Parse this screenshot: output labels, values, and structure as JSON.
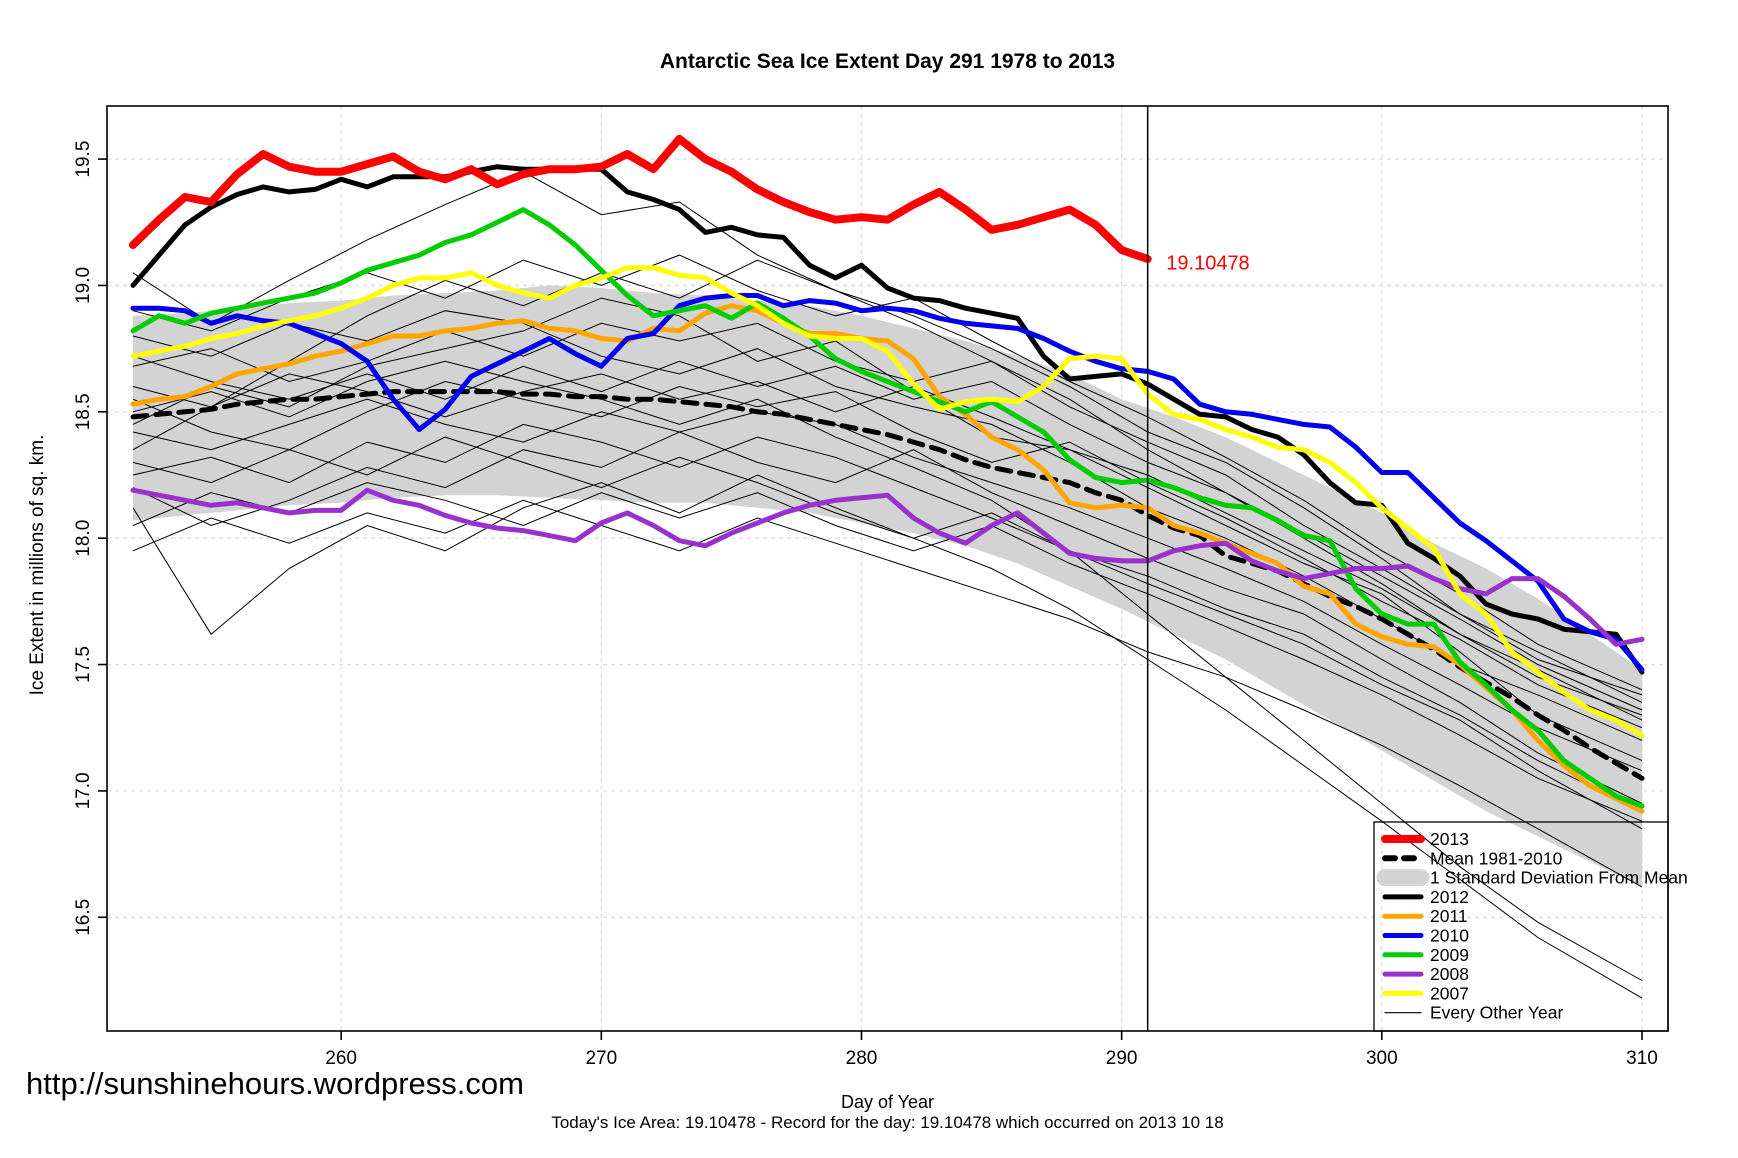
{
  "footer": {
    "url": "http://sunshinehours.wordpress.com",
    "caption": "Today's Ice Area: 19.10478  - Record for the day: 19.10478 which occurred on 2013 10 18"
  },
  "chart_data": {
    "type": "line",
    "title": "Antarctic Sea Ice Extent Day 291 1978 to 2013",
    "xlabel": "Day of Year",
    "ylabel": "Ice Extent in millions of sq. km.",
    "xlim": [
      251,
      311
    ],
    "ylim": [
      16.05,
      19.71
    ],
    "x_ticks": [
      "260",
      "270",
      "280",
      "290",
      "300",
      "310"
    ],
    "y_ticks": [
      "16.5",
      "17.0",
      "17.5",
      "18.0",
      "18.5",
      "19.0",
      "19.5"
    ],
    "grid": true,
    "grid_color": "#dedede",
    "legend_position": "bottom-right",
    "vline_day": 291,
    "annotation": {
      "text": "19.10478",
      "day": 291.6,
      "value": 19.09,
      "color": "#ff0000"
    },
    "band": {
      "label": "1 Standard Deviation From Mean",
      "color": "#d3d3d3",
      "days": [
        252,
        254,
        256,
        258,
        260,
        262,
        264,
        266,
        268,
        270,
        272,
        274,
        276,
        278,
        280,
        282,
        284,
        286,
        288,
        290,
        292,
        294,
        296,
        298,
        300,
        302,
        304,
        306,
        308,
        310
      ],
      "upper": [
        18.88,
        18.89,
        18.91,
        18.93,
        18.94,
        18.96,
        18.97,
        18.98,
        19.0,
        18.99,
        18.97,
        18.96,
        18.94,
        18.92,
        18.88,
        18.83,
        18.78,
        18.72,
        18.65,
        18.55,
        18.48,
        18.4,
        18.3,
        18.2,
        18.1,
        17.98,
        17.88,
        17.76,
        17.62,
        17.48
      ],
      "lower": [
        18.07,
        18.09,
        18.11,
        18.13,
        18.14,
        18.16,
        18.17,
        18.17,
        18.16,
        18.15,
        18.14,
        18.14,
        18.12,
        18.1,
        18.06,
        18.02,
        17.97,
        17.9,
        17.81,
        17.72,
        17.62,
        17.52,
        17.4,
        17.28,
        17.16,
        17.04,
        16.92,
        16.82,
        16.72,
        16.62
      ]
    },
    "series": [
      {
        "name": "Mean 1981-2010",
        "color": "#000000",
        "width": 5,
        "dash": "14 9",
        "day_start": 252,
        "values": [
          18.48,
          18.49,
          18.5,
          18.51,
          18.53,
          18.54,
          18.55,
          18.55,
          18.56,
          18.57,
          18.58,
          18.58,
          18.58,
          18.58,
          18.58,
          18.57,
          18.57,
          18.56,
          18.56,
          18.55,
          18.55,
          18.54,
          18.53,
          18.52,
          18.5,
          18.49,
          18.47,
          18.45,
          18.43,
          18.41,
          18.38,
          18.35,
          18.31,
          18.28,
          18.26,
          18.24,
          18.22,
          18.18,
          18.15,
          18.09,
          18.04,
          18.01,
          17.93,
          17.9,
          17.87,
          17.82,
          17.77,
          17.73,
          17.68,
          17.62,
          17.56,
          17.49,
          17.43,
          17.37,
          17.3,
          17.24,
          17.17,
          17.11,
          17.05
        ]
      },
      {
        "name": "2012",
        "color": "#000000",
        "width": 5,
        "dash": null,
        "day_start": 252,
        "values": [
          19.0,
          19.12,
          19.24,
          19.31,
          19.36,
          19.39,
          19.37,
          19.38,
          19.42,
          19.39,
          19.43,
          19.43,
          19.43,
          19.45,
          19.47,
          19.46,
          19.46,
          19.46,
          19.46,
          19.37,
          19.34,
          19.3,
          19.21,
          19.23,
          19.2,
          19.19,
          19.08,
          19.03,
          19.08,
          18.99,
          18.95,
          18.94,
          18.91,
          18.89,
          18.87,
          18.72,
          18.63,
          18.64,
          18.65,
          18.61,
          18.55,
          18.49,
          18.48,
          18.43,
          18.4,
          18.33,
          18.22,
          18.14,
          18.13,
          17.98,
          17.92,
          17.85,
          17.74,
          17.7,
          17.68,
          17.64,
          17.63,
          17.62,
          17.47
        ]
      },
      {
        "name": "2011",
        "color": "#ffa500",
        "width": 5,
        "dash": null,
        "day_start": 252,
        "values": [
          18.53,
          18.55,
          18.56,
          18.6,
          18.65,
          18.67,
          18.69,
          18.72,
          18.74,
          18.77,
          18.8,
          18.8,
          18.82,
          18.83,
          18.85,
          18.86,
          18.83,
          18.82,
          18.79,
          18.78,
          18.83,
          18.82,
          18.89,
          18.92,
          18.9,
          18.85,
          18.81,
          18.81,
          18.79,
          18.78,
          18.71,
          18.56,
          18.49,
          18.4,
          18.35,
          18.27,
          18.14,
          18.12,
          18.13,
          18.12,
          18.05,
          18.02,
          17.98,
          17.94,
          17.9,
          17.81,
          17.78,
          17.66,
          17.61,
          17.58,
          17.57,
          17.5,
          17.41,
          17.32,
          17.2,
          17.1,
          17.02,
          16.97,
          16.92
        ]
      },
      {
        "name": "2010",
        "color": "#0000ee",
        "width": 5,
        "dash": null,
        "day_start": 252,
        "values": [
          18.91,
          18.91,
          18.9,
          18.85,
          18.88,
          18.86,
          18.85,
          18.81,
          18.77,
          18.7,
          18.55,
          18.43,
          18.51,
          18.64,
          18.69,
          18.74,
          18.79,
          18.73,
          18.68,
          18.79,
          18.81,
          18.92,
          18.95,
          18.96,
          18.96,
          18.92,
          18.94,
          18.93,
          18.9,
          18.91,
          18.9,
          18.87,
          18.85,
          18.84,
          18.83,
          18.79,
          18.74,
          18.7,
          18.67,
          18.66,
          18.63,
          18.53,
          18.5,
          18.49,
          18.47,
          18.45,
          18.44,
          18.36,
          18.26,
          18.26,
          18.16,
          18.06,
          17.99,
          17.91,
          17.83,
          17.68,
          17.63,
          17.6,
          17.48
        ]
      },
      {
        "name": "2009",
        "color": "#00cc00",
        "width": 5,
        "dash": null,
        "day_start": 252,
        "values": [
          18.82,
          18.88,
          18.85,
          18.89,
          18.91,
          18.93,
          18.95,
          18.97,
          19.01,
          19.06,
          19.09,
          19.12,
          19.17,
          19.2,
          19.25,
          19.3,
          19.24,
          19.16,
          19.06,
          18.96,
          18.88,
          18.9,
          18.92,
          18.87,
          18.93,
          18.87,
          18.8,
          18.71,
          18.66,
          18.62,
          18.58,
          18.54,
          18.5,
          18.54,
          18.48,
          18.42,
          18.31,
          18.24,
          18.22,
          18.23,
          18.2,
          18.16,
          18.13,
          18.12,
          18.07,
          18.01,
          17.99,
          17.8,
          17.7,
          17.66,
          17.66,
          17.51,
          17.42,
          17.32,
          17.24,
          17.12,
          17.05,
          16.98,
          16.94
        ]
      },
      {
        "name": "2008",
        "color": "#9932cc",
        "width": 5,
        "dash": null,
        "day_start": 252,
        "values": [
          18.19,
          18.17,
          18.15,
          18.13,
          18.14,
          18.12,
          18.1,
          18.11,
          18.11,
          18.19,
          18.15,
          18.13,
          18.09,
          18.06,
          18.04,
          18.03,
          18.01,
          17.99,
          18.06,
          18.1,
          18.05,
          17.99,
          17.97,
          18.02,
          18.06,
          18.1,
          18.13,
          18.15,
          18.16,
          18.17,
          18.08,
          18.02,
          17.98,
          18.05,
          18.1,
          18.02,
          17.94,
          17.92,
          17.91,
          17.91,
          17.95,
          17.97,
          17.98,
          17.91,
          17.87,
          17.84,
          17.86,
          17.88,
          17.88,
          17.89,
          17.84,
          17.8,
          17.78,
          17.84,
          17.84,
          17.77,
          17.68,
          17.58,
          17.6
        ]
      },
      {
        "name": "2007",
        "color": "#ffff00",
        "width": 5,
        "dash": null,
        "day_start": 252,
        "values": [
          18.72,
          18.74,
          18.76,
          18.79,
          18.81,
          18.84,
          18.86,
          18.88,
          18.91,
          18.95,
          19.0,
          19.03,
          19.03,
          19.05,
          19.0,
          18.97,
          18.95,
          19.0,
          19.03,
          19.07,
          19.07,
          19.04,
          19.03,
          18.97,
          18.92,
          18.85,
          18.8,
          18.79,
          18.79,
          18.74,
          18.61,
          18.51,
          18.54,
          18.55,
          18.54,
          18.6,
          18.71,
          18.72,
          18.71,
          18.57,
          18.49,
          18.47,
          18.43,
          18.4,
          18.36,
          18.35,
          18.3,
          18.22,
          18.12,
          18.04,
          17.96,
          17.78,
          17.7,
          17.55,
          17.47,
          17.39,
          17.32,
          17.28,
          17.22
        ]
      },
      {
        "name": "2013",
        "color": "#ff0000",
        "width": 8,
        "dash": null,
        "day_start": 252,
        "values": [
          19.16,
          19.26,
          19.35,
          19.33,
          19.44,
          19.52,
          19.47,
          19.45,
          19.45,
          19.48,
          19.51,
          19.45,
          19.42,
          19.46,
          19.4,
          19.44,
          19.46,
          19.46,
          19.47,
          19.52,
          19.46,
          19.58,
          19.5,
          19.45,
          19.38,
          19.33,
          19.29,
          19.26,
          19.27,
          19.26,
          19.32,
          19.37,
          19.3,
          19.22,
          19.24,
          19.27,
          19.3,
          19.24,
          19.14,
          19.10478
        ]
      }
    ],
    "every_other_year": {
      "label": "Every Other Year",
      "color": "#000000",
      "width": 1,
      "days": [
        252,
        255,
        258,
        261,
        264,
        267,
        270,
        273,
        276,
        279,
        282,
        285,
        288,
        291,
        294,
        297,
        300,
        303,
        306,
        310
      ],
      "lines": [
        [
          19.05,
          18.85,
          19.02,
          19.18,
          19.32,
          19.45,
          19.28,
          19.33,
          19.12,
          18.98,
          18.88,
          18.75,
          18.6,
          18.42,
          18.3,
          18.12,
          17.92,
          17.7,
          17.52,
          17.38
        ],
        [
          18.45,
          18.6,
          18.52,
          18.68,
          18.75,
          18.82,
          18.95,
          18.88,
          18.7,
          18.78,
          18.58,
          18.4,
          18.35,
          18.2,
          18.05,
          17.9,
          17.78,
          17.55,
          17.3,
          17.12
        ],
        [
          18.8,
          18.72,
          18.85,
          18.78,
          18.9,
          18.85,
          18.72,
          18.65,
          18.75,
          18.6,
          18.52,
          18.45,
          18.3,
          18.12,
          18.0,
          17.85,
          17.68,
          17.5,
          17.38,
          17.2
        ],
        [
          18.2,
          18.05,
          18.15,
          18.28,
          18.2,
          18.35,
          18.28,
          18.42,
          18.3,
          18.22,
          18.35,
          18.18,
          18.05,
          17.92,
          17.8,
          17.7,
          17.52,
          17.35,
          17.15,
          16.95
        ],
        [
          18.55,
          18.42,
          18.35,
          18.5,
          18.62,
          18.55,
          18.48,
          18.6,
          18.52,
          18.58,
          18.42,
          18.3,
          18.38,
          18.22,
          18.08,
          17.92,
          17.75,
          17.6,
          17.42,
          17.25
        ],
        [
          18.12,
          17.62,
          17.88,
          18.05,
          17.95,
          18.12,
          18.22,
          18.1,
          18.25,
          18.12,
          18.0,
          18.1,
          17.95,
          17.82,
          17.7,
          17.58,
          17.42,
          17.28,
          17.08,
          16.85
        ],
        [
          18.68,
          18.75,
          18.62,
          18.7,
          18.82,
          18.72,
          18.85,
          18.78,
          18.85,
          18.7,
          18.62,
          18.7,
          18.52,
          18.38,
          18.25,
          18.05,
          17.88,
          17.7,
          17.55,
          17.35
        ],
        [
          18.35,
          18.52,
          18.7,
          18.88,
          19.02,
          18.92,
          19.05,
          18.95,
          19.1,
          18.98,
          18.85,
          18.7,
          18.55,
          18.35,
          18.18,
          18.0,
          17.82,
          17.62,
          17.48,
          17.28
        ],
        [
          18.25,
          18.32,
          18.22,
          18.38,
          18.3,
          18.45,
          18.38,
          18.28,
          18.4,
          18.32,
          18.2,
          18.08,
          17.95,
          17.85,
          17.72,
          17.62,
          17.45,
          17.3,
          17.12,
          16.92
        ],
        [
          18.5,
          18.58,
          18.48,
          18.62,
          18.7,
          18.62,
          18.55,
          18.45,
          18.55,
          18.4,
          18.28,
          18.15,
          17.95,
          17.7,
          17.45,
          17.2,
          16.95,
          16.7,
          16.48,
          16.25
        ],
        [
          18.9,
          18.82,
          18.95,
          19.05,
          18.95,
          19.1,
          19.0,
          19.12,
          18.98,
          18.88,
          18.95,
          18.78,
          18.62,
          18.48,
          18.32,
          18.15,
          17.95,
          17.78,
          17.58,
          17.4
        ],
        [
          18.05,
          18.18,
          18.1,
          18.22,
          18.15,
          18.05,
          18.18,
          18.08,
          18.18,
          18.05,
          17.95,
          18.05,
          17.9,
          17.78,
          17.65,
          17.52,
          17.38,
          17.22,
          17.05,
          16.88
        ],
        [
          18.6,
          18.52,
          18.65,
          18.58,
          18.48,
          18.58,
          18.65,
          18.55,
          18.62,
          18.5,
          18.6,
          18.48,
          18.35,
          18.25,
          18.1,
          17.95,
          17.8,
          17.62,
          17.45,
          17.3
        ],
        [
          17.95,
          18.08,
          17.98,
          18.1,
          18.02,
          18.15,
          18.05,
          17.95,
          18.08,
          17.98,
          17.88,
          17.78,
          17.68,
          17.55,
          17.45,
          17.32,
          17.18,
          17.02,
          16.85,
          16.62
        ],
        [
          18.72,
          18.62,
          18.55,
          18.65,
          18.55,
          18.68,
          18.58,
          18.7,
          18.6,
          18.68,
          18.55,
          18.62,
          18.45,
          18.3,
          18.18,
          18.02,
          17.85,
          17.68,
          17.5,
          17.32
        ],
        [
          18.3,
          18.22,
          18.35,
          18.25,
          18.4,
          18.3,
          18.2,
          18.32,
          18.22,
          18.1,
          18.0,
          17.88,
          17.72,
          17.52,
          17.32,
          17.1,
          16.88,
          16.65,
          16.42,
          16.18
        ],
        [
          18.42,
          18.35,
          18.45,
          18.55,
          18.45,
          18.38,
          18.5,
          18.42,
          18.5,
          18.45,
          18.32,
          18.22,
          18.12,
          18.0,
          17.88,
          17.75,
          17.58,
          17.42,
          17.25,
          17.08
        ]
      ]
    },
    "legend": {
      "entries": [
        {
          "label": "2013",
          "color": "#ff0000",
          "width": 8,
          "dash": null
        },
        {
          "label": "Mean 1981-2010",
          "color": "#000000",
          "width": 6,
          "dash": "10 9"
        },
        {
          "label": "1 Standard Deviation From Mean",
          "color": "#d3d3d3",
          "width": 17,
          "dash": null
        },
        {
          "label": "2012",
          "color": "#000000",
          "width": 5,
          "dash": null
        },
        {
          "label": "2011",
          "color": "#ffa500",
          "width": 5,
          "dash": null
        },
        {
          "label": "2010",
          "color": "#0000ee",
          "width": 5,
          "dash": null
        },
        {
          "label": "2009",
          "color": "#00cc00",
          "width": 5,
          "dash": null
        },
        {
          "label": "2008",
          "color": "#9932cc",
          "width": 5,
          "dash": null
        },
        {
          "label": "2007",
          "color": "#ffff00",
          "width": 5,
          "dash": null
        },
        {
          "label": "Every Other Year",
          "color": "#000000",
          "width": 1.2,
          "dash": null
        }
      ]
    }
  }
}
